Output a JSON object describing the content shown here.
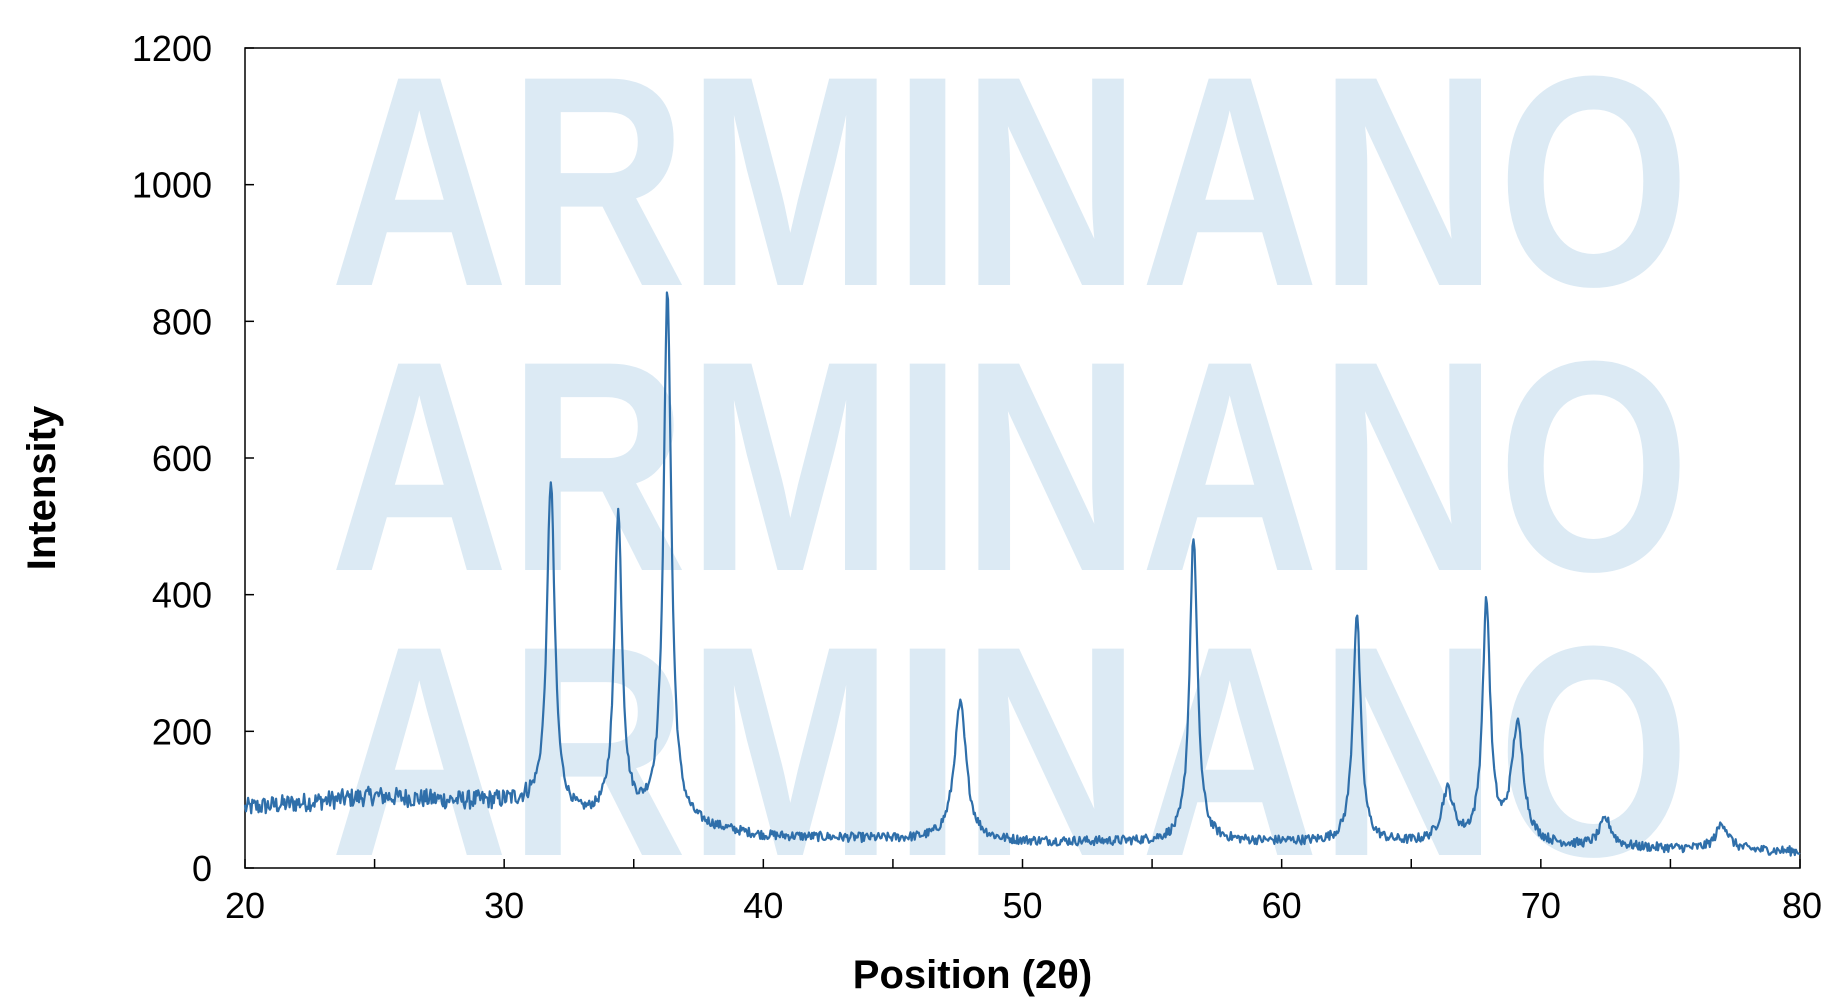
{
  "watermark": "ARMINANO",
  "colors": {
    "line": "#2f6faa",
    "watermark": "#d6e7f3",
    "axis": "#000000"
  },
  "chart_data": {
    "type": "line",
    "title": "",
    "xlabel": "Position (2θ)",
    "ylabel": "Intensity",
    "xlim": [
      20,
      80
    ],
    "ylim": [
      0,
      1200
    ],
    "xticks": [
      20,
      30,
      40,
      50,
      60,
      70,
      80
    ],
    "yticks": [
      0,
      200,
      400,
      600,
      800,
      1000,
      1200
    ],
    "grid": false,
    "legend": "none",
    "baseline": [
      [
        20,
        88
      ],
      [
        25,
        105
      ],
      [
        28,
        98
      ],
      [
        30,
        96
      ],
      [
        31,
        95
      ],
      [
        33,
        72
      ],
      [
        36,
        70
      ],
      [
        37,
        62
      ],
      [
        40,
        46
      ],
      [
        45,
        42
      ],
      [
        50,
        38
      ],
      [
        55,
        38
      ],
      [
        60,
        38
      ],
      [
        65,
        35
      ],
      [
        70,
        32
      ],
      [
        75,
        28
      ],
      [
        80,
        24
      ]
    ],
    "peaks": [
      {
        "x": 31.8,
        "y": 565
      },
      {
        "x": 34.4,
        "y": 515
      },
      {
        "x": 36.3,
        "y": 840
      },
      {
        "x": 47.6,
        "y": 240
      },
      {
        "x": 56.6,
        "y": 485
      },
      {
        "x": 62.9,
        "y": 370
      },
      {
        "x": 66.4,
        "y": 110
      },
      {
        "x": 67.9,
        "y": 382
      },
      {
        "x": 69.1,
        "y": 205
      },
      {
        "x": 72.5,
        "y": 70
      },
      {
        "x": 77.0,
        "y": 65
      }
    ]
  }
}
